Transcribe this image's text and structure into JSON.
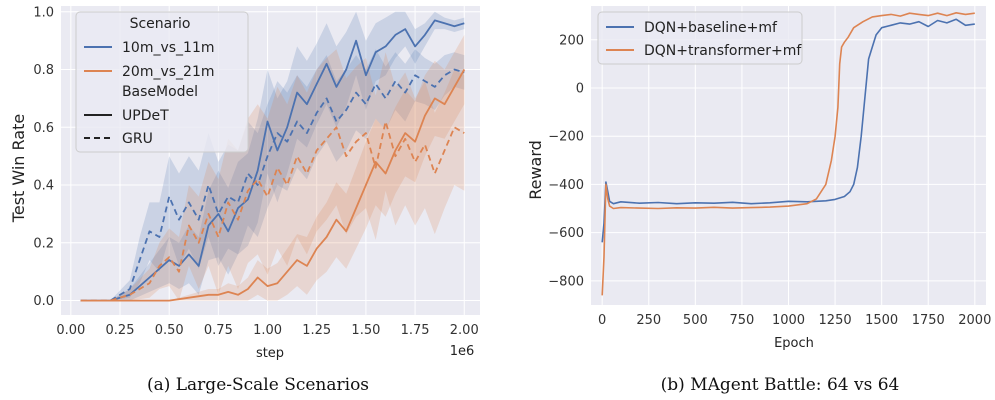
{
  "colors": {
    "panel_bg": "#eaeaf2",
    "grid": "#ffffff",
    "blue": "#4c72b0",
    "orange": "#dd8452"
  },
  "chart_data": [
    {
      "type": "line",
      "caption": "(a) Large-Scale Scenarios",
      "xlabel": "step",
      "ylabel": "Test Win Rate",
      "x_offset_label": "1e6",
      "xlim": [
        -0.05,
        2.08
      ],
      "ylim": [
        -0.05,
        1.02
      ],
      "x_ticks": [
        0.0,
        0.25,
        0.5,
        0.75,
        1.0,
        1.25,
        1.5,
        1.75,
        2.0
      ],
      "x_tick_labels": [
        "0.00",
        "0.25",
        "0.50",
        "0.75",
        "1.00",
        "1.25",
        "1.50",
        "1.75",
        "2.00"
      ],
      "y_ticks": [
        0.0,
        0.2,
        0.4,
        0.6,
        0.8,
        1.0
      ],
      "y_tick_labels": [
        "0.0",
        "0.2",
        "0.4",
        "0.6",
        "0.8",
        "1.0"
      ],
      "grid": true,
      "legend_position": "top-left",
      "legend": {
        "scenario_title": "Scenario",
        "scenarios": [
          "10m_vs_11m",
          "20m_vs_21m"
        ],
        "basemodel_title": "BaseModel",
        "models": [
          "UPDeT",
          "GRU"
        ]
      },
      "series": [
        {
          "name": "10m_vs_11m",
          "model": "UPDeT",
          "color": "blue",
          "style": "solid",
          "x": [
            0.05,
            0.2,
            0.3,
            0.4,
            0.5,
            0.55,
            0.6,
            0.65,
            0.7,
            0.75,
            0.8,
            0.85,
            0.9,
            0.95,
            1.0,
            1.05,
            1.1,
            1.15,
            1.2,
            1.25,
            1.3,
            1.35,
            1.4,
            1.45,
            1.5,
            1.55,
            1.6,
            1.65,
            1.7,
            1.75,
            1.8,
            1.85,
            1.9,
            1.95,
            2.0
          ],
          "y": [
            0.0,
            0.0,
            0.02,
            0.08,
            0.14,
            0.12,
            0.16,
            0.12,
            0.26,
            0.3,
            0.24,
            0.32,
            0.35,
            0.45,
            0.62,
            0.52,
            0.6,
            0.72,
            0.68,
            0.75,
            0.82,
            0.74,
            0.8,
            0.9,
            0.78,
            0.86,
            0.88,
            0.92,
            0.94,
            0.88,
            0.92,
            0.97,
            0.96,
            0.95,
            0.96
          ],
          "band": [
            0.0,
            0.0,
            0.02,
            0.05,
            0.08,
            0.08,
            0.1,
            0.1,
            0.12,
            0.15,
            0.15,
            0.16,
            0.16,
            0.18,
            0.18,
            0.18,
            0.16,
            0.16,
            0.15,
            0.14,
            0.14,
            0.14,
            0.13,
            0.12,
            0.12,
            0.1,
            0.1,
            0.08,
            0.06,
            0.06,
            0.04,
            0.03,
            0.02,
            0.02,
            0.02
          ]
        },
        {
          "name": "10m_vs_11m",
          "model": "GRU",
          "color": "blue",
          "style": "dashed",
          "x": [
            0.05,
            0.2,
            0.3,
            0.35,
            0.4,
            0.45,
            0.5,
            0.55,
            0.6,
            0.65,
            0.7,
            0.75,
            0.8,
            0.85,
            0.9,
            0.95,
            1.0,
            1.05,
            1.1,
            1.15,
            1.2,
            1.25,
            1.3,
            1.35,
            1.4,
            1.45,
            1.5,
            1.55,
            1.6,
            1.65,
            1.7,
            1.75,
            1.8,
            1.85,
            1.9,
            1.95,
            2.0
          ],
          "y": [
            0.0,
            0.0,
            0.04,
            0.14,
            0.24,
            0.22,
            0.36,
            0.28,
            0.34,
            0.28,
            0.4,
            0.3,
            0.36,
            0.34,
            0.44,
            0.4,
            0.5,
            0.58,
            0.55,
            0.62,
            0.58,
            0.65,
            0.7,
            0.62,
            0.66,
            0.72,
            0.68,
            0.75,
            0.7,
            0.76,
            0.72,
            0.78,
            0.76,
            0.74,
            0.78,
            0.8,
            0.79
          ],
          "band": [
            0.0,
            0.0,
            0.03,
            0.08,
            0.1,
            0.12,
            0.14,
            0.16,
            0.16,
            0.17,
            0.18,
            0.18,
            0.18,
            0.18,
            0.18,
            0.18,
            0.18,
            0.18,
            0.17,
            0.16,
            0.16,
            0.15,
            0.15,
            0.14,
            0.14,
            0.13,
            0.12,
            0.12,
            0.11,
            0.1,
            0.1,
            0.09,
            0.08,
            0.08,
            0.07,
            0.06,
            0.06
          ]
        },
        {
          "name": "20m_vs_21m",
          "model": "UPDeT",
          "color": "orange",
          "style": "solid",
          "x": [
            0.05,
            0.5,
            0.6,
            0.7,
            0.75,
            0.8,
            0.85,
            0.9,
            0.95,
            1.0,
            1.05,
            1.1,
            1.15,
            1.2,
            1.25,
            1.3,
            1.35,
            1.4,
            1.45,
            1.5,
            1.55,
            1.6,
            1.65,
            1.7,
            1.75,
            1.8,
            1.85,
            1.9,
            1.95,
            2.0
          ],
          "y": [
            0.0,
            0.0,
            0.01,
            0.02,
            0.02,
            0.03,
            0.02,
            0.04,
            0.08,
            0.05,
            0.06,
            0.1,
            0.14,
            0.12,
            0.18,
            0.22,
            0.28,
            0.24,
            0.32,
            0.4,
            0.48,
            0.44,
            0.52,
            0.58,
            0.55,
            0.64,
            0.7,
            0.68,
            0.74,
            0.8
          ],
          "band": [
            0.0,
            0.0,
            0.01,
            0.02,
            0.02,
            0.03,
            0.03,
            0.04,
            0.06,
            0.06,
            0.07,
            0.08,
            0.09,
            0.1,
            0.11,
            0.12,
            0.13,
            0.13,
            0.14,
            0.15,
            0.15,
            0.15,
            0.15,
            0.15,
            0.14,
            0.14,
            0.13,
            0.12,
            0.12,
            0.12
          ]
        },
        {
          "name": "20m_vs_21m",
          "model": "GRU",
          "color": "orange",
          "style": "dashed",
          "x": [
            0.05,
            0.2,
            0.3,
            0.4,
            0.45,
            0.5,
            0.55,
            0.6,
            0.65,
            0.7,
            0.75,
            0.8,
            0.85,
            0.9,
            0.95,
            1.0,
            1.05,
            1.1,
            1.15,
            1.2,
            1.25,
            1.3,
            1.35,
            1.4,
            1.45,
            1.5,
            1.55,
            1.6,
            1.65,
            1.7,
            1.75,
            1.8,
            1.85,
            1.9,
            1.95,
            2.0
          ],
          "y": [
            0.0,
            0.0,
            0.02,
            0.06,
            0.12,
            0.15,
            0.1,
            0.26,
            0.2,
            0.3,
            0.22,
            0.34,
            0.28,
            0.38,
            0.42,
            0.36,
            0.46,
            0.4,
            0.5,
            0.44,
            0.52,
            0.56,
            0.6,
            0.5,
            0.55,
            0.58,
            0.46,
            0.62,
            0.5,
            0.56,
            0.48,
            0.54,
            0.44,
            0.52,
            0.6,
            0.58
          ],
          "band": [
            0.0,
            0.0,
            0.02,
            0.05,
            0.08,
            0.1,
            0.12,
            0.14,
            0.16,
            0.18,
            0.2,
            0.22,
            0.24,
            0.25,
            0.26,
            0.27,
            0.28,
            0.28,
            0.28,
            0.28,
            0.28,
            0.28,
            0.27,
            0.27,
            0.26,
            0.26,
            0.25,
            0.24,
            0.24,
            0.23,
            0.22,
            0.22,
            0.21,
            0.2,
            0.2,
            0.2
          ]
        }
      ]
    },
    {
      "type": "line",
      "caption": "(b) MAgent Battle: 64 vs 64",
      "xlabel": "Epoch",
      "ylabel": "Reward",
      "xlim": [
        -60,
        2060
      ],
      "ylim": [
        -900,
        340
      ],
      "x_ticks": [
        0,
        250,
        500,
        750,
        1000,
        1250,
        1500,
        1750,
        2000
      ],
      "x_tick_labels": [
        "0",
        "250",
        "500",
        "750",
        "1000",
        "1250",
        "1500",
        "1750",
        "2000"
      ],
      "y_ticks": [
        -800,
        -600,
        -400,
        -200,
        0,
        200
      ],
      "y_tick_labels": [
        "−800",
        "−600",
        "−400",
        "−200",
        "0",
        "200"
      ],
      "grid": true,
      "legend_position": "top-left",
      "series": [
        {
          "name": "DQN+baseline+mf",
          "color": "blue",
          "x": [
            0,
            10,
            20,
            30,
            40,
            60,
            100,
            200,
            300,
            400,
            500,
            600,
            700,
            800,
            900,
            1000,
            1100,
            1200,
            1250,
            1300,
            1330,
            1350,
            1370,
            1390,
            1410,
            1430,
            1450,
            1470,
            1500,
            1550,
            1600,
            1650,
            1700,
            1750,
            1800,
            1850,
            1900,
            1950,
            2000
          ],
          "y": [
            -640,
            -560,
            -390,
            -430,
            -470,
            -480,
            -472,
            -478,
            -475,
            -480,
            -476,
            -478,
            -474,
            -480,
            -476,
            -470,
            -472,
            -468,
            -462,
            -450,
            -430,
            -400,
            -330,
            -200,
            -40,
            120,
            170,
            220,
            250,
            260,
            270,
            265,
            275,
            255,
            280,
            270,
            285,
            260,
            265
          ]
        },
        {
          "name": "DQN+transformer+mf",
          "color": "orange",
          "x": [
            0,
            10,
            20,
            30,
            40,
            60,
            100,
            200,
            300,
            400,
            500,
            600,
            700,
            800,
            900,
            1000,
            1100,
            1150,
            1200,
            1230,
            1250,
            1265,
            1275,
            1285,
            1300,
            1320,
            1350,
            1400,
            1450,
            1500,
            1550,
            1600,
            1650,
            1700,
            1750,
            1800,
            1850,
            1900,
            1950,
            2000
          ],
          "y": [
            -860,
            -700,
            -400,
            -460,
            -490,
            -500,
            -496,
            -498,
            -500,
            -497,
            -498,
            -495,
            -498,
            -496,
            -494,
            -490,
            -480,
            -460,
            -400,
            -300,
            -200,
            -80,
            100,
            170,
            190,
            210,
            250,
            275,
            295,
            300,
            305,
            298,
            310,
            305,
            300,
            310,
            300,
            312,
            305,
            310
          ]
        }
      ]
    }
  ]
}
